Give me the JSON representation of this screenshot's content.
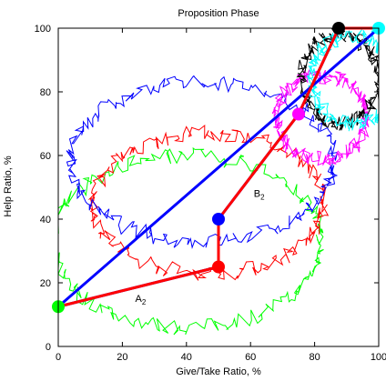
{
  "chart_data": {
    "type": "line",
    "title": "Proposition Phase",
    "xlabel": "Give/Take Ratio, %",
    "ylabel": "Help Ratio, %",
    "xlim": [
      0,
      100
    ],
    "ylim": [
      0,
      100
    ],
    "xticks": [
      "0",
      "20",
      "40",
      "60",
      "80",
      "100"
    ],
    "yticks": [
      "0",
      "20",
      "40",
      "60",
      "80",
      "100"
    ],
    "grid": false,
    "legend": "none",
    "series": [
      {
        "color": "#0000ff",
        "style": "thick-line",
        "points": [
          [
            0,
            12.5
          ],
          [
            50,
            25
          ],
          [
            50,
            40
          ],
          [
            75,
            73
          ],
          [
            87.5,
            100
          ],
          [
            100,
            100
          ],
          [
            0,
            12.5
          ]
        ]
      },
      {
        "color": "#ff0000",
        "style": "thick-line",
        "points": [
          [
            0,
            12.5
          ],
          [
            50,
            25
          ],
          [
            50,
            40
          ],
          [
            75,
            73
          ],
          [
            87.5,
            100
          ],
          [
            100,
            100
          ]
        ]
      }
    ],
    "markers": [
      {
        "x": 0,
        "y": 12.5,
        "color": "#00ff00"
      },
      {
        "x": 50,
        "y": 25,
        "color": "#ff0000"
      },
      {
        "x": 50,
        "y": 40,
        "color": "#0000ff"
      },
      {
        "x": 75,
        "y": 73,
        "color": "#ff00ff"
      },
      {
        "x": 87.5,
        "y": 100,
        "color": "#000000"
      },
      {
        "x": 100,
        "y": 100,
        "color": "#00ffff"
      }
    ],
    "loops": [
      {
        "color": "#00ff00",
        "center": [
          40,
          33
        ],
        "radius": [
          42,
          27
        ]
      },
      {
        "color": "#ff0000",
        "center": [
          47,
          45
        ],
        "radius": [
          36,
          22
        ]
      },
      {
        "color": "#0000ff",
        "center": [
          45,
          58
        ],
        "radius": [
          41,
          25
        ]
      },
      {
        "color": "#ff00ff",
        "center": [
          82,
          72
        ],
        "radius": [
          14,
          13
        ]
      },
      {
        "color": "#000000",
        "center": [
          88,
          84
        ],
        "radius": [
          12,
          14
        ]
      },
      {
        "color": "#00ffff",
        "center": [
          92,
          84
        ],
        "radius": [
          13,
          14
        ]
      }
    ],
    "annotations": [
      {
        "text": "A",
        "sub": "2",
        "x": 24,
        "y": 14
      },
      {
        "text": "B",
        "sub": "2",
        "x": 61,
        "y": 47
      },
      {
        "text": "C",
        "sub": "2",
        "x": 93,
        "y": 96
      }
    ]
  }
}
